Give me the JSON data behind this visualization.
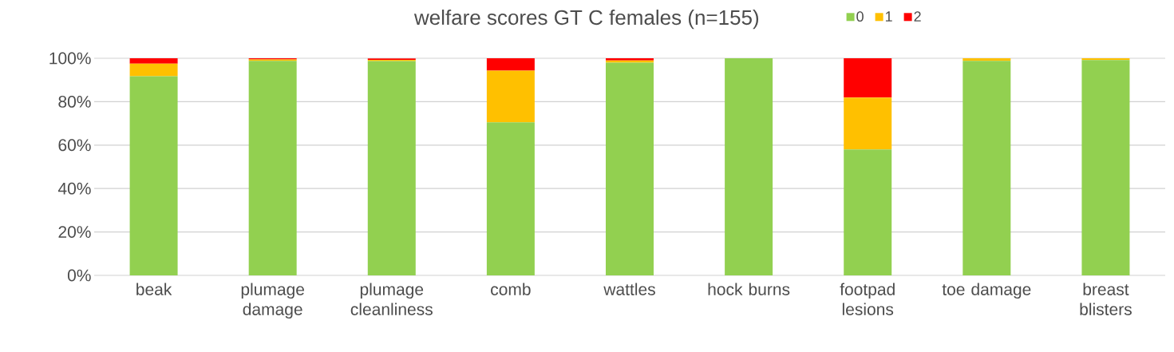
{
  "chart_data": {
    "type": "bar",
    "stacked": true,
    "title": "welfare scores GT C females (n=155)",
    "categories": [
      "beak",
      "plumage damage",
      "plumage cleanliness",
      "comb",
      "wattles",
      "hock burns",
      "footpad lesions",
      "toe damage",
      "breast blisters"
    ],
    "series": [
      {
        "name": "0",
        "color": "#92d050",
        "values": [
          91.7,
          98.8,
          98.7,
          70.5,
          98.0,
          100,
          58.0,
          98.8,
          99.2
        ]
      },
      {
        "name": "1",
        "color": "#ffc000",
        "values": [
          5.8,
          0.6,
          0.6,
          23.8,
          1.0,
          0,
          23.9,
          1.2,
          0.8
        ]
      },
      {
        "name": "2",
        "color": "#ff0000",
        "values": [
          2.5,
          0.6,
          0.6,
          5.7,
          1.0,
          0,
          18.1,
          0,
          0
        ]
      }
    ],
    "ylim": [
      0,
      100
    ],
    "yticks": [
      {
        "value": 0,
        "label": "0%"
      },
      {
        "value": 20,
        "label": "20%"
      },
      {
        "value": 40,
        "label": "40%"
      },
      {
        "value": 60,
        "label": "60%"
      },
      {
        "value": 80,
        "label": "80%"
      },
      {
        "value": 100,
        "label": "100%"
      }
    ],
    "grid": "y",
    "legend": "top right"
  }
}
